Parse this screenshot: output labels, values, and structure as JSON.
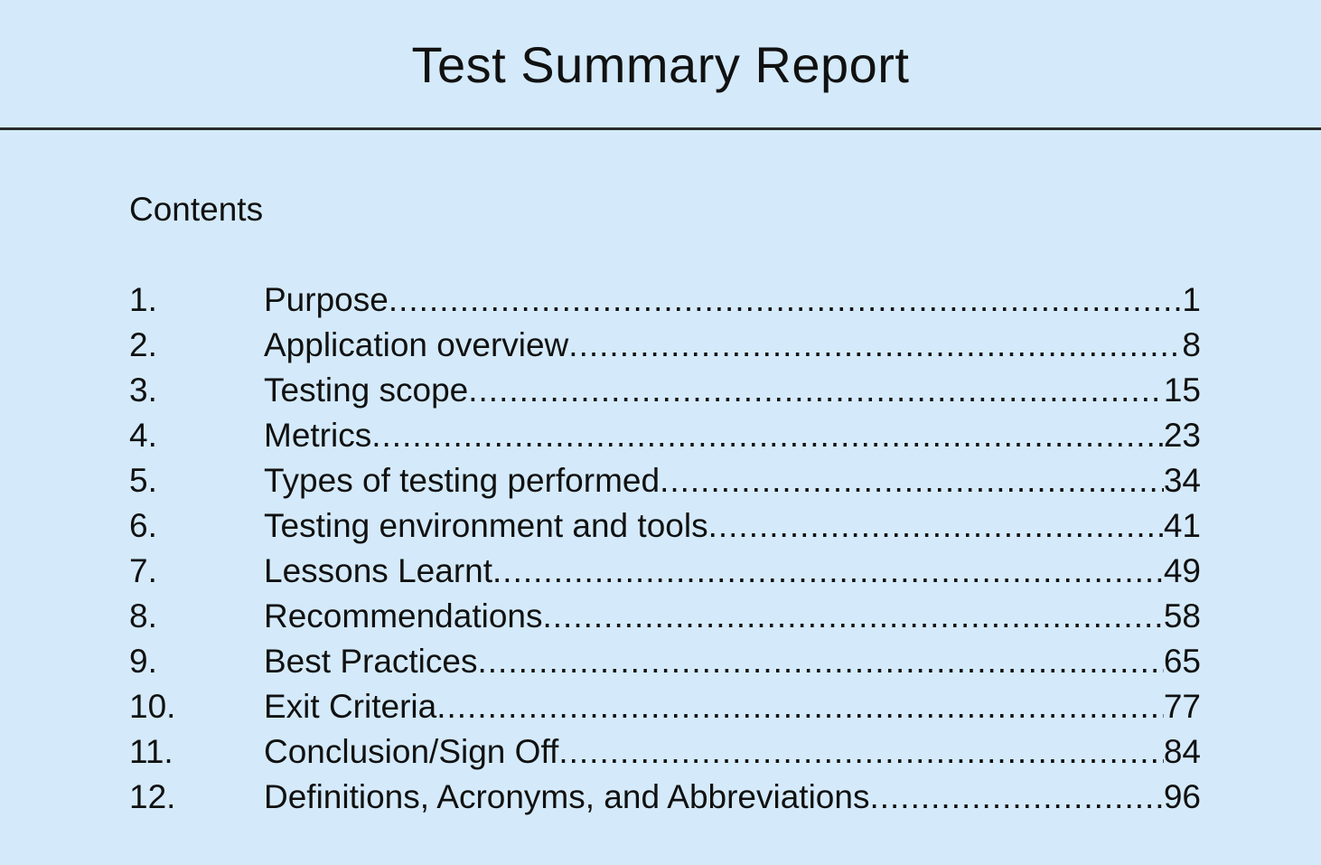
{
  "document": {
    "title": "Test Summary Report",
    "contents_heading": "Contents"
  },
  "toc": [
    {
      "number": "1.",
      "title": "Purpose",
      "page": "1"
    },
    {
      "number": "2.",
      "title": "Application overview",
      "page": "8"
    },
    {
      "number": "3.",
      "title": "Testing scope",
      "page": "15"
    },
    {
      "number": "4.",
      "title": "Metrics",
      "page": "23"
    },
    {
      "number": "5.",
      "title": "Types of testing performed",
      "page": "34"
    },
    {
      "number": "6.",
      "title": "Testing environment and tools",
      "page": "41"
    },
    {
      "number": "7.",
      "title": "Lessons Learnt",
      "page": "49"
    },
    {
      "number": "8.",
      "title": "Recommendations",
      "page": "58"
    },
    {
      "number": "9.",
      "title": "Best Practices",
      "page": "65"
    },
    {
      "number": "10.",
      "title": "Exit Criteria",
      "page": "77"
    },
    {
      "number": "11.",
      "title": "Conclusion/Sign Off",
      "page": "84"
    },
    {
      "number": "12.",
      "title": "Definitions, Acronyms, and Abbreviations",
      "page": "96"
    }
  ],
  "colors": {
    "background": "#d4eafa",
    "text": "#111111",
    "rule": "#2a2a2a"
  }
}
